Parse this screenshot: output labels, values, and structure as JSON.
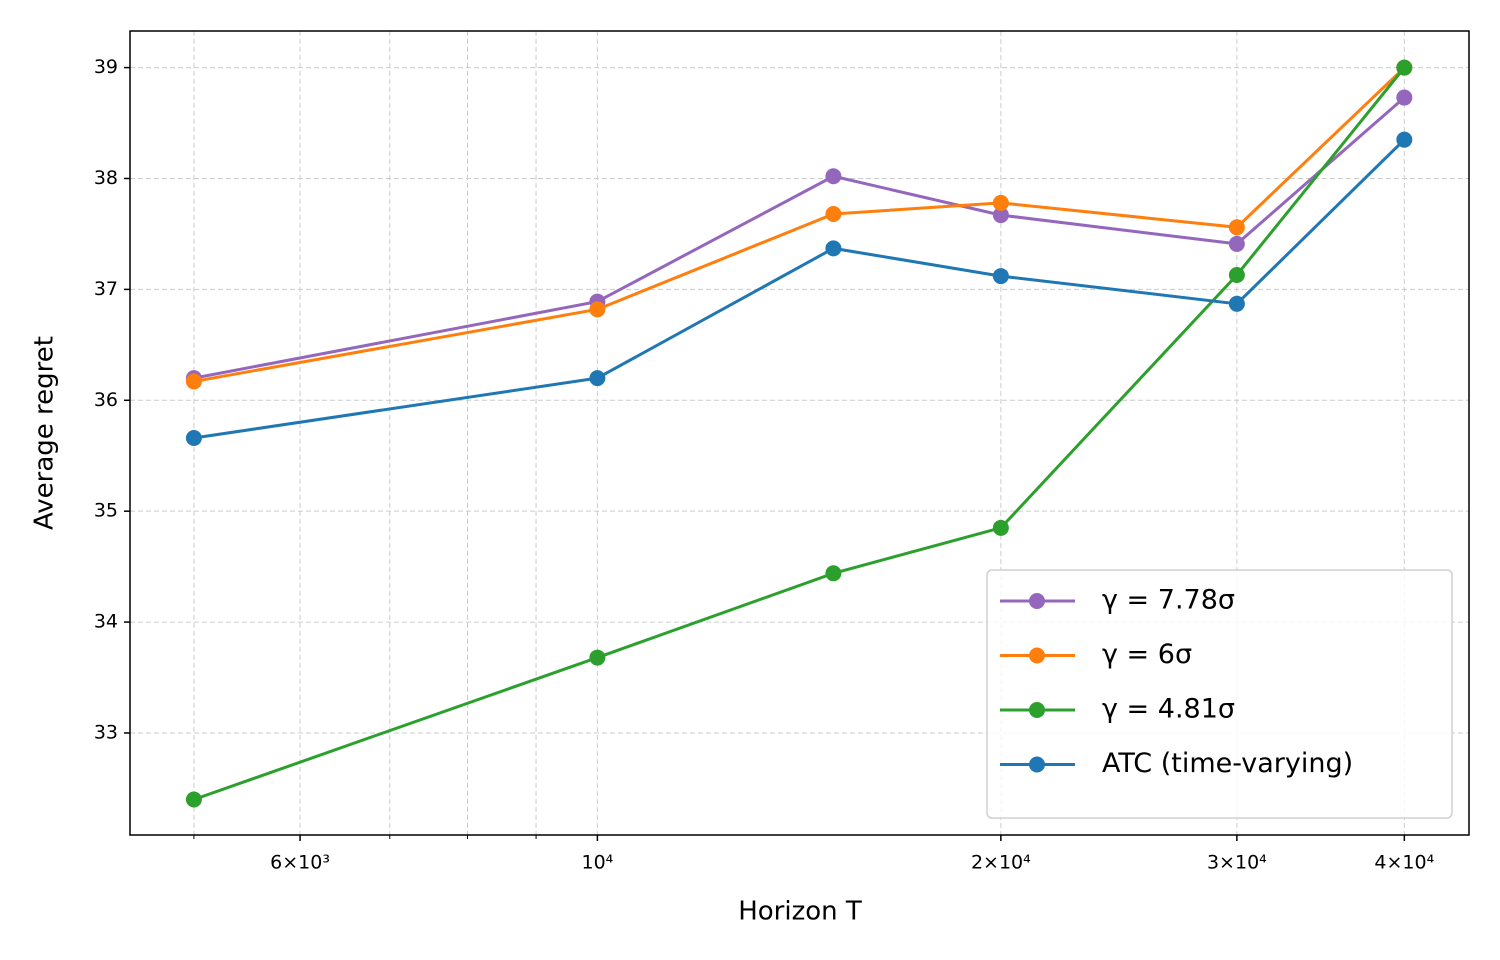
{
  "chart_data": {
    "type": "line",
    "xlabel": "Horizon T",
    "ylabel": "Average regret",
    "xscale": "log",
    "x": [
      5000,
      10000,
      15000,
      20000,
      30000,
      40000
    ],
    "xlim": [
      4480,
      44700
    ],
    "ylim": [
      32.08,
      39.33
    ],
    "xticks": [
      {
        "value": 6000,
        "label": "6×10³"
      },
      {
        "value": 10000,
        "label": "10⁴"
      },
      {
        "value": 20000,
        "label": "2×10⁴"
      },
      {
        "value": 30000,
        "label": "3×10⁴"
      },
      {
        "value": 40000,
        "label": "4×10⁴"
      }
    ],
    "xminor_ticks": [
      5000,
      7000,
      8000,
      9000
    ],
    "yticks": [
      33,
      34,
      35,
      36,
      37,
      38,
      39
    ],
    "grid": true,
    "legend": "lower right",
    "series": [
      {
        "name": "γ = 7.78σ",
        "color": "#9467bd",
        "values": [
          36.2,
          36.89,
          38.02,
          37.67,
          37.41,
          38.73
        ]
      },
      {
        "name": "γ = 6σ",
        "color": "#ff7f0e",
        "values": [
          36.17,
          36.82,
          37.68,
          37.78,
          37.56,
          39.0
        ]
      },
      {
        "name": "γ = 4.81σ",
        "color": "#2ca02c",
        "values": [
          32.4,
          33.68,
          34.44,
          34.85,
          37.13,
          39.0
        ]
      },
      {
        "name": "ATC (time-varying)",
        "color": "#1f77b4",
        "values": [
          35.66,
          36.2,
          37.37,
          37.12,
          36.87,
          38.35
        ]
      }
    ]
  }
}
